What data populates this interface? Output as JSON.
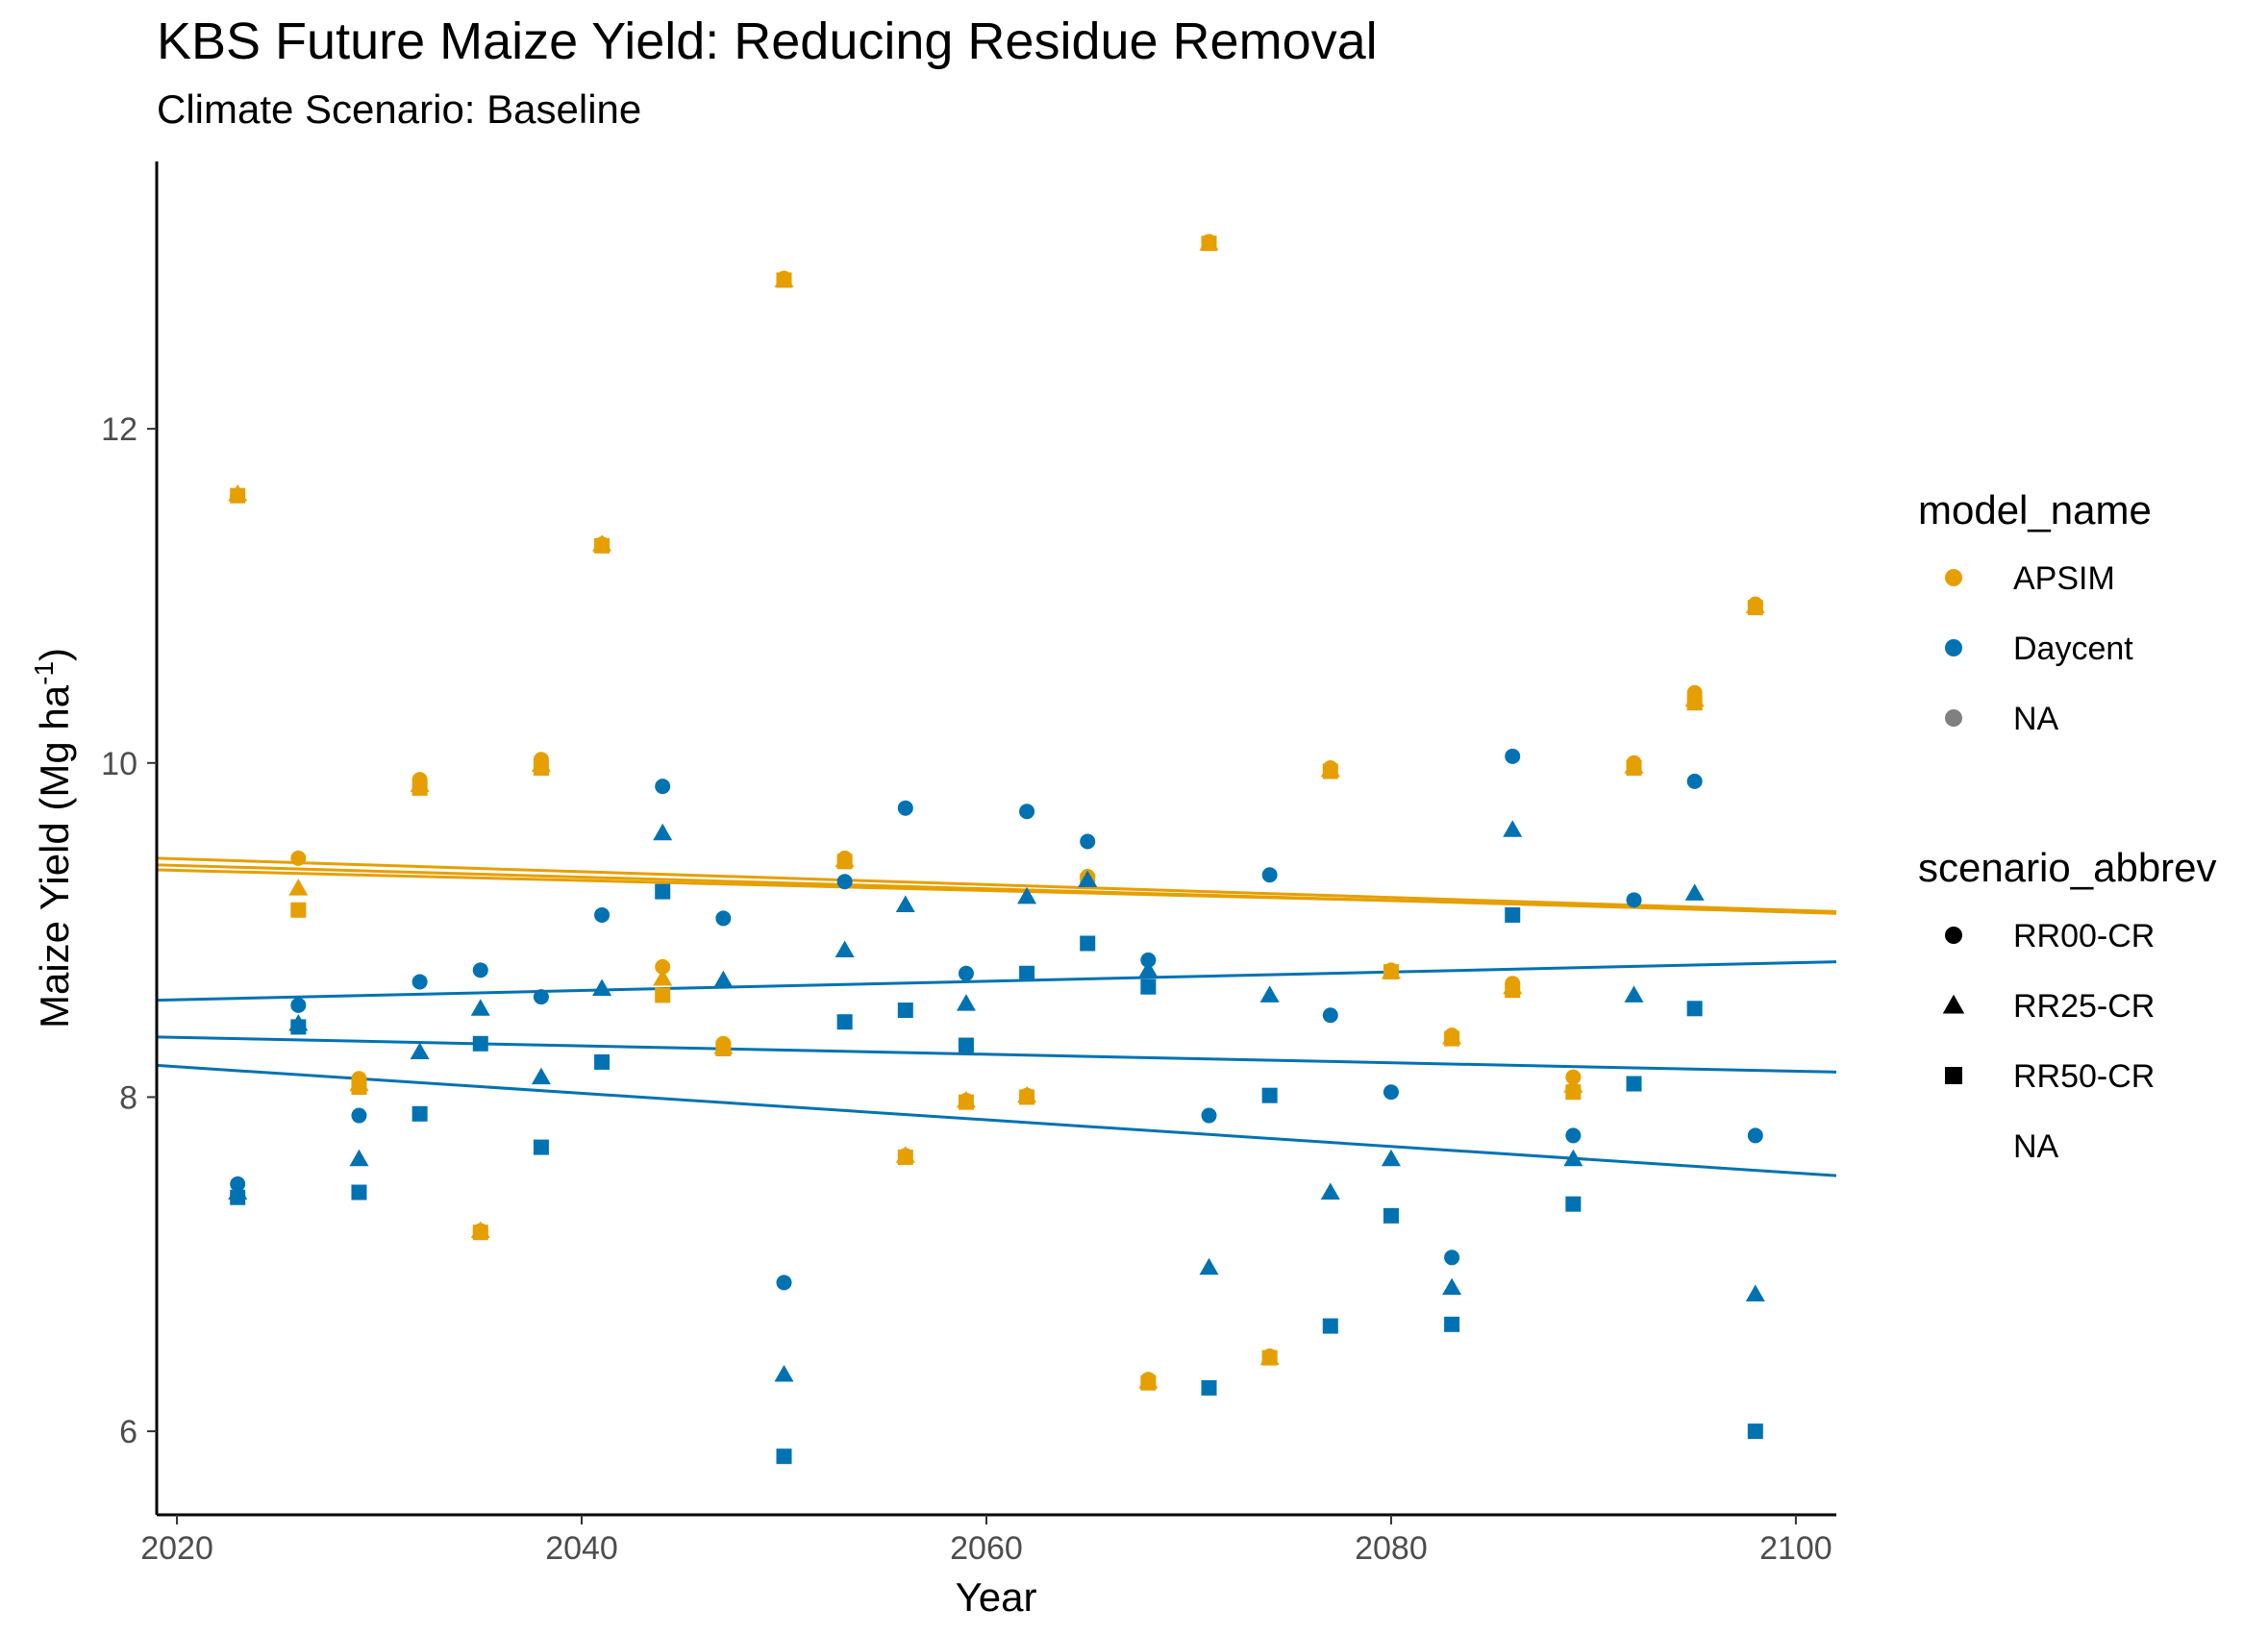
{
  "chart_data": {
    "type": "scatter",
    "title": "KBS Future Maize Yield: Reducing Residue Removal",
    "subtitle": "Climate Scenario: Baseline",
    "xlabel": "Year",
    "ylabel": "Maize Yield (Mg ha",
    "ylabel_superscript": "-1",
    "ylabel_close": ")",
    "xlim": [
      2019,
      2102
    ],
    "ylim": [
      5.5,
      13.6
    ],
    "x_ticks": [
      2020,
      2040,
      2060,
      2080,
      2100
    ],
    "y_ticks": [
      6,
      8,
      10,
      12
    ],
    "grid": false,
    "legend_placement": "right",
    "colors": {
      "APSIM": "#E69F00",
      "Daycent": "#0072B2",
      "NA": "#808080"
    },
    "legends": [
      {
        "title": "model_name",
        "entries": [
          {
            "label": "APSIM",
            "shape": "circle",
            "color": "#E69F00"
          },
          {
            "label": "Daycent",
            "shape": "circle",
            "color": "#0072B2"
          },
          {
            "label": "NA",
            "shape": "circle",
            "color": "#808080"
          }
        ]
      },
      {
        "title": "scenario_abbrev",
        "entries": [
          {
            "label": "RR00-CR",
            "shape": "circle",
            "color": "#000000"
          },
          {
            "label": "RR25-CR",
            "shape": "triangle",
            "color": "#000000"
          },
          {
            "label": "RR50-CR",
            "shape": "square",
            "color": "#000000"
          },
          {
            "label": "NA",
            "shape": "none",
            "color": "#000000"
          }
        ]
      }
    ],
    "series": [
      {
        "model": "APSIM",
        "scenario": "RR00-CR",
        "shape": "circle",
        "x": [
          2023,
          2026,
          2029,
          2032,
          2035,
          2038,
          2041,
          2044,
          2047,
          2050,
          2053,
          2056,
          2059,
          2062,
          2065,
          2068,
          2071,
          2074,
          2077,
          2080,
          2083,
          2086,
          2089,
          2092,
          2095,
          2098
        ],
        "y": [
          11.6,
          9.43,
          8.11,
          9.9,
          7.2,
          10.02,
          11.31,
          8.78,
          8.32,
          12.9,
          9.43,
          7.65,
          7.98,
          8.01,
          9.32,
          6.31,
          13.12,
          6.45,
          9.97,
          8.76,
          8.37,
          8.68,
          8.12,
          10.0,
          10.42,
          10.95
        ]
      },
      {
        "model": "APSIM",
        "scenario": "RR25-CR",
        "shape": "triangle",
        "x": [
          2023,
          2026,
          2029,
          2032,
          2035,
          2038,
          2041,
          2044,
          2047,
          2050,
          2053,
          2056,
          2059,
          2062,
          2065,
          2068,
          2071,
          2074,
          2077,
          2080,
          2083,
          2086,
          2089,
          2092,
          2095,
          2098
        ],
        "y": [
          11.61,
          9.25,
          8.08,
          9.87,
          7.2,
          9.99,
          11.31,
          8.71,
          8.3,
          12.89,
          9.42,
          7.65,
          7.98,
          8.01,
          9.3,
          6.3,
          13.11,
          6.44,
          9.96,
          8.75,
          8.36,
          8.66,
          8.07,
          9.98,
          10.38,
          10.94
        ]
      },
      {
        "model": "APSIM",
        "scenario": "RR50-CR",
        "shape": "square",
        "x": [
          2023,
          2026,
          2029,
          2032,
          2035,
          2038,
          2041,
          2044,
          2047,
          2050,
          2053,
          2056,
          2059,
          2062,
          2065,
          2068,
          2071,
          2074,
          2077,
          2080,
          2083,
          2086,
          2089,
          2092,
          2095,
          2098
        ],
        "y": [
          11.6,
          9.12,
          8.06,
          9.85,
          7.19,
          9.97,
          11.3,
          8.61,
          8.29,
          12.89,
          9.41,
          7.64,
          7.97,
          8.0,
          9.29,
          6.29,
          13.11,
          6.44,
          9.95,
          8.75,
          8.35,
          8.64,
          8.03,
          9.97,
          10.36,
          10.93
        ]
      },
      {
        "model": "Daycent",
        "scenario": "RR00-CR",
        "shape": "circle",
        "x": [
          2023,
          2026,
          2029,
          2032,
          2035,
          2038,
          2041,
          2044,
          2047,
          2050,
          2053,
          2056,
          2059,
          2062,
          2065,
          2068,
          2071,
          2074,
          2077,
          2080,
          2083,
          2086,
          2089,
          2092,
          2095,
          2098
        ],
        "y": [
          7.48,
          8.55,
          7.89,
          8.69,
          8.76,
          8.6,
          9.09,
          9.86,
          9.07,
          6.89,
          9.29,
          9.73,
          8.74,
          9.71,
          9.53,
          8.82,
          7.89,
          9.33,
          8.49,
          8.03,
          7.04,
          10.04,
          7.77,
          9.18,
          9.89,
          7.77
        ]
      },
      {
        "model": "Daycent",
        "scenario": "RR25-CR",
        "shape": "triangle",
        "x": [
          2023,
          2026,
          2029,
          2032,
          2035,
          2038,
          2041,
          2044,
          2047,
          2050,
          2053,
          2056,
          2059,
          2062,
          2065,
          2068,
          2071,
          2074,
          2077,
          2080,
          2083,
          2086,
          2089,
          2092,
          2095,
          2098
        ],
        "y": [
          7.43,
          8.44,
          7.63,
          8.27,
          8.53,
          8.12,
          8.65,
          9.58,
          8.7,
          6.34,
          8.88,
          9.15,
          8.56,
          9.2,
          9.3,
          8.76,
          6.98,
          8.61,
          7.43,
          7.63,
          6.86,
          9.6,
          7.63,
          8.61,
          9.22,
          6.82
        ]
      },
      {
        "model": "Daycent",
        "scenario": "RR50-CR",
        "shape": "square",
        "x": [
          2023,
          2026,
          2029,
          2032,
          2035,
          2038,
          2041,
          2044,
          2047,
          2050,
          2053,
          2056,
          2059,
          2062,
          2065,
          2068,
          2071,
          2074,
          2077,
          2080,
          2083,
          2086,
          2089,
          2092,
          2095,
          2098
        ],
        "y": [
          7.4,
          8.42,
          7.43,
          7.9,
          8.32,
          7.7,
          8.21,
          9.23,
          null,
          5.85,
          8.45,
          8.52,
          8.31,
          8.74,
          8.92,
          8.66,
          6.26,
          8.01,
          6.63,
          7.29,
          6.64,
          9.09,
          7.36,
          8.08,
          8.53,
          6.0
        ]
      }
    ],
    "trend_lines": [
      {
        "model": "APSIM",
        "scenario": "RR00-CR",
        "x": [
          2019,
          2102
        ],
        "y": [
          9.43,
          9.11
        ]
      },
      {
        "model": "APSIM",
        "scenario": "RR25-CR",
        "x": [
          2019,
          2102
        ],
        "y": [
          9.39,
          9.1
        ]
      },
      {
        "model": "APSIM",
        "scenario": "RR50-CR",
        "x": [
          2019,
          2102
        ],
        "y": [
          9.36,
          9.11
        ]
      },
      {
        "model": "Daycent",
        "scenario": "RR00-CR",
        "x": [
          2019,
          2102
        ],
        "y": [
          8.58,
          8.81
        ]
      },
      {
        "model": "Daycent",
        "scenario": "RR25-CR",
        "x": [
          2019,
          2102
        ],
        "y": [
          8.36,
          8.15
        ]
      },
      {
        "model": "Daycent",
        "scenario": "RR50-CR",
        "x": [
          2019,
          2102
        ],
        "y": [
          8.19,
          7.53
        ]
      }
    ]
  }
}
